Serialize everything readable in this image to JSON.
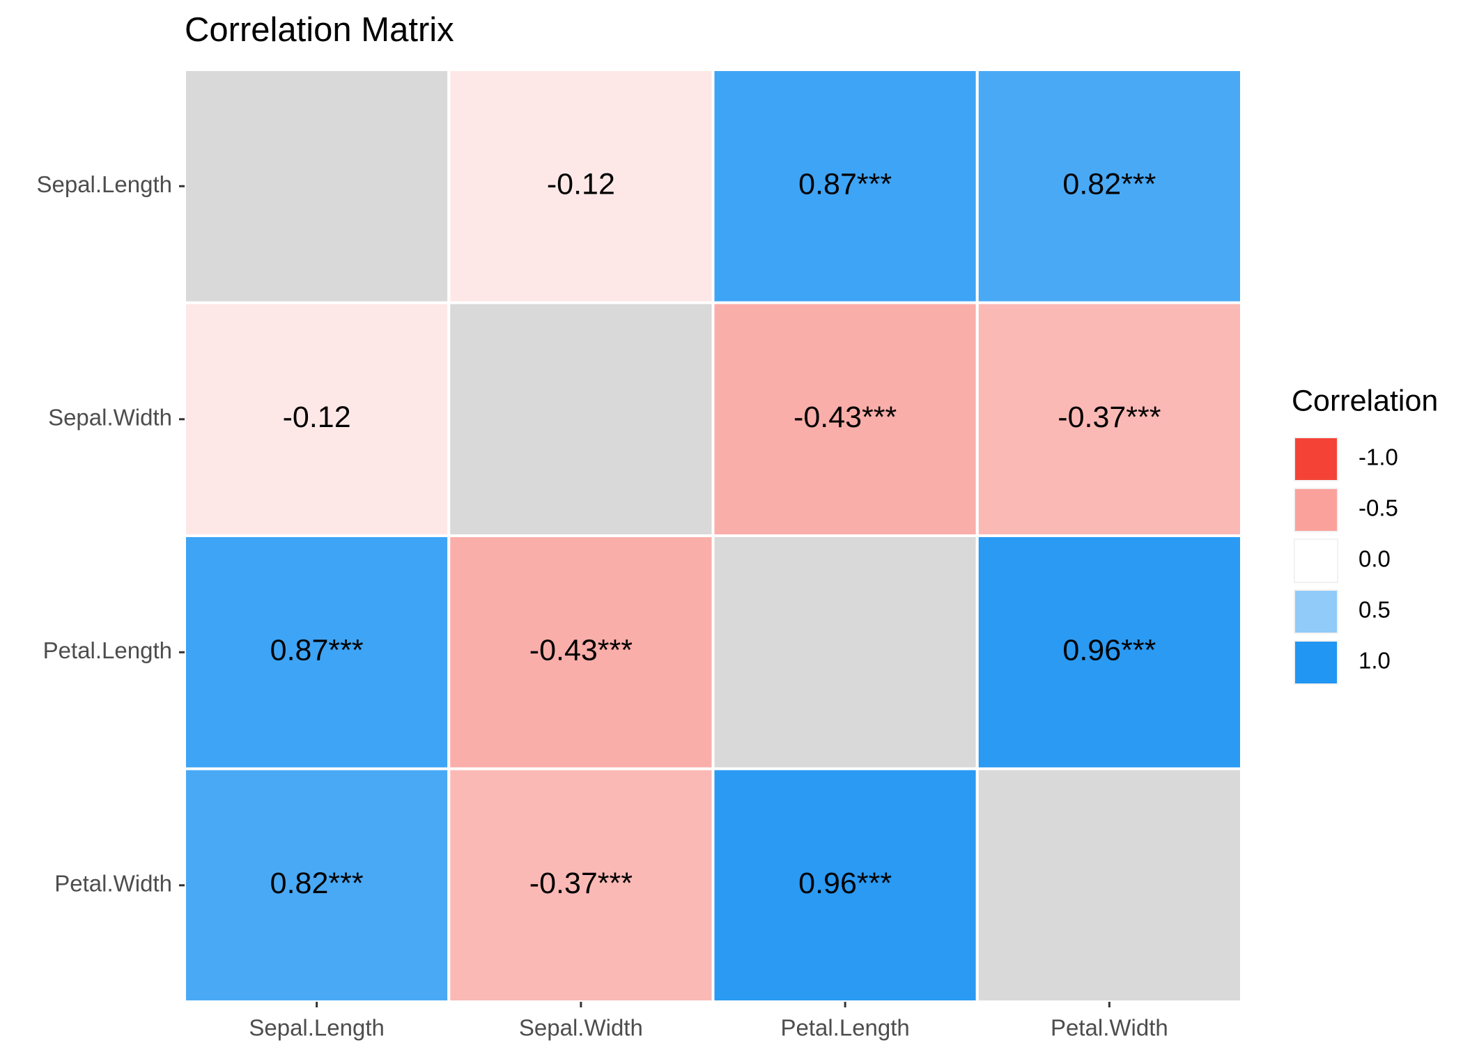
{
  "chart_data": {
    "type": "heatmap",
    "title": "Correlation Matrix",
    "x_categories": [
      "Sepal.Length",
      "Sepal.Width",
      "Petal.Length",
      "Petal.Width"
    ],
    "y_categories": [
      "Sepal.Length",
      "Sepal.Width",
      "Petal.Length",
      "Petal.Width"
    ],
    "values": [
      [
        null,
        -0.12,
        0.87,
        0.82
      ],
      [
        -0.12,
        null,
        -0.43,
        -0.37
      ],
      [
        0.87,
        -0.43,
        null,
        0.96
      ],
      [
        0.82,
        -0.37,
        0.96,
        null
      ]
    ],
    "value_labels": [
      [
        null,
        "-0.12",
        "0.87***",
        "0.82***"
      ],
      [
        "-0.12",
        null,
        "-0.43***",
        "-0.37***"
      ],
      [
        "0.87***",
        "-0.43***",
        null,
        "0.96***"
      ],
      [
        "0.82***",
        "-0.37***",
        "0.96***",
        null
      ]
    ],
    "legend_title": "Correlation",
    "color_scale": {
      "low": "#F44336",
      "mid": "#FFFFFF",
      "high": "#2196F3",
      "limits": [
        -1,
        1
      ],
      "na_color": "#D9D9D9"
    },
    "legend_ticks": [
      {
        "value": -1,
        "label": "-1.0"
      },
      -0.5,
      {
        "value": 0,
        "label": "0.0"
      },
      0.5,
      {
        "value": 1,
        "label": "1.0"
      }
    ]
  }
}
